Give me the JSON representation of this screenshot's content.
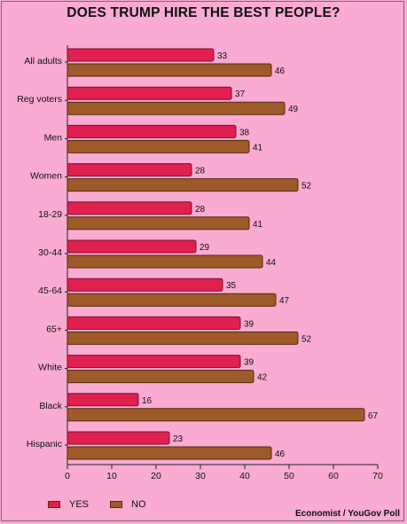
{
  "chart_data": {
    "type": "bar",
    "orientation": "horizontal",
    "title": "DOES TRUMP HIRE THE BEST PEOPLE?",
    "categories": [
      "All adults",
      "Reg voters",
      "Men",
      "Women",
      "18-29",
      "30-44",
      "45-64",
      "65+",
      "White",
      "Black",
      "Hispanic"
    ],
    "series": [
      {
        "name": "YES",
        "color": "#e0204f",
        "values": [
          33,
          37,
          38,
          28,
          28,
          29,
          35,
          39,
          39,
          16,
          23
        ]
      },
      {
        "name": "NO",
        "color": "#9f5a2a",
        "values": [
          46,
          49,
          41,
          52,
          41,
          44,
          47,
          52,
          42,
          67,
          46
        ]
      }
    ],
    "xlim": [
      0,
      70
    ],
    "xticks": [
      "0",
      "10",
      "20",
      "30",
      "40",
      "50",
      "60",
      "70"
    ],
    "grid": false,
    "legend_placement": "bottom-left",
    "source": "Economist / YouGov Poll"
  }
}
